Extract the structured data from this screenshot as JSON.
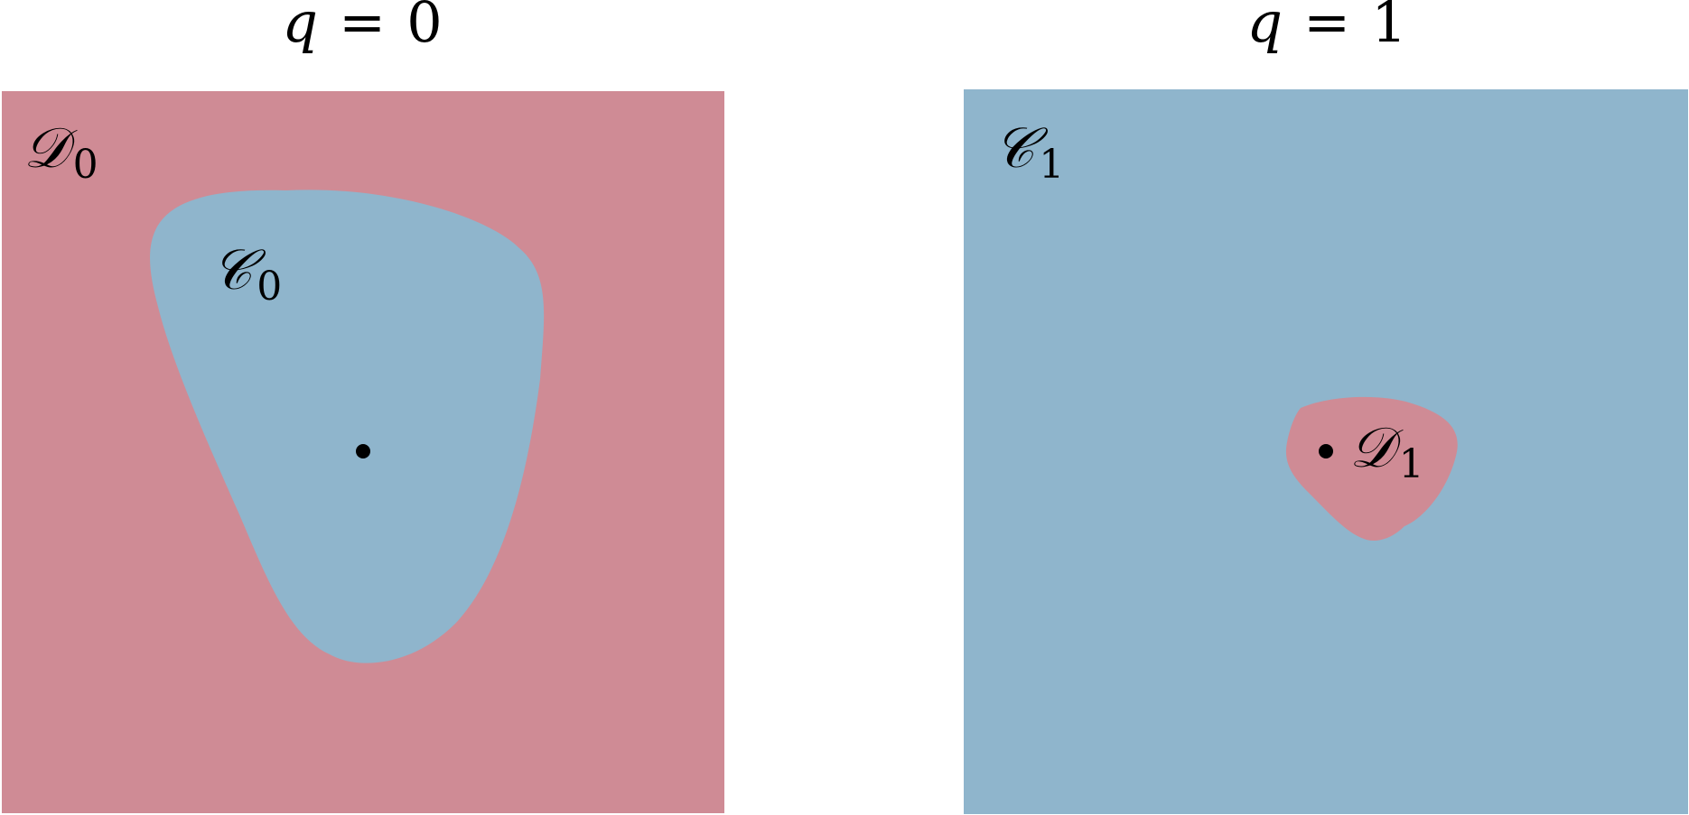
{
  "colors": {
    "d_region": "#cf8b95",
    "c_region": "#8fb5cc",
    "dot": "#000000",
    "background": "#ffffff"
  },
  "left_panel": {
    "title": {
      "variable": "q",
      "operator": "=",
      "value": "0"
    },
    "outer_label": {
      "main": "𝒟",
      "subscript": "0"
    },
    "inner_label": {
      "main": "𝒞",
      "subscript": "0"
    }
  },
  "right_panel": {
    "title": {
      "variable": "q",
      "operator": "=",
      "value": "1"
    },
    "outer_label": {
      "main": "𝒞",
      "subscript": "1"
    },
    "inner_label": {
      "main": "𝒟",
      "subscript": "1"
    }
  }
}
